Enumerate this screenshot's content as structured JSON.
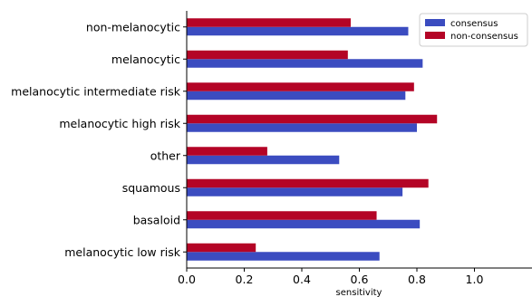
{
  "chart_data": {
    "type": "bar",
    "orientation": "horizontal",
    "categories": [
      "non-melanocytic",
      "melanocytic",
      "melanocytic intermediate risk",
      "melanocytic high risk",
      "other",
      "squamous",
      "basaloid",
      "melanocytic low risk"
    ],
    "series": [
      {
        "name": "consensus",
        "color": "#3b4cc0",
        "values": [
          0.77,
          0.82,
          0.76,
          0.8,
          0.53,
          0.75,
          0.81,
          0.67
        ]
      },
      {
        "name": "non-consensus",
        "color": "#b40426",
        "values": [
          0.57,
          0.56,
          0.79,
          0.87,
          0.28,
          0.84,
          0.66,
          0.24
        ]
      }
    ],
    "xlabel": "sensitivity",
    "ylabel": "",
    "xlim": [
      0,
      1.2
    ],
    "xticks": [
      "0.0",
      "0.2",
      "0.4",
      "0.6",
      "0.8",
      "1.0"
    ],
    "grid": false,
    "legend_position": "top-right"
  }
}
